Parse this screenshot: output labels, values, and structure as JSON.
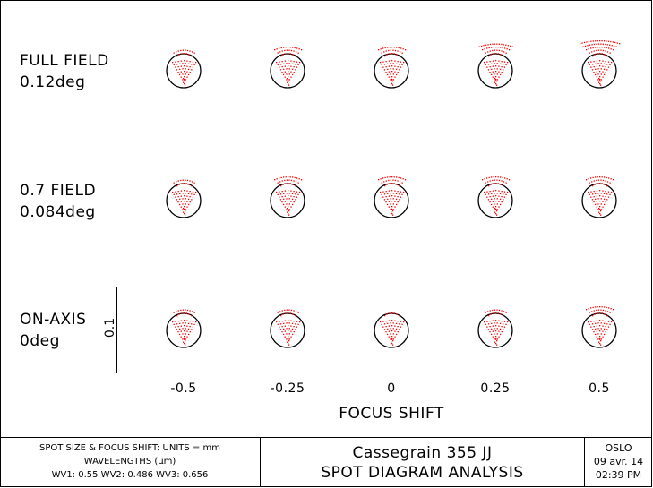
{
  "rows": [
    {
      "name": "FULL FIELD",
      "angle": "0.12deg"
    },
    {
      "name": "0.7 FIELD",
      "angle": "0.084deg"
    },
    {
      "name": "ON-AXIS",
      "angle": "0deg"
    }
  ],
  "focus_shifts": [
    "-0.5",
    "-0.25",
    "0",
    "0.25",
    "0.5"
  ],
  "axis_title": "FOCUS SHIFT",
  "scale_label": "0.1",
  "spot_color": "#ff0000",
  "footer": {
    "units_line": "SPOT SIZE & FOCUS SHIFT: UNITS = mm",
    "wavelengths_line": "WAVELENGTHS (μm)",
    "wv_line": "WV1: 0.55 WV2: 0.486 WV3: 0.656",
    "title": "Cassegrain 355 JJ",
    "subtitle": "SPOT DIAGRAM ANALYSIS",
    "program": "OSLO",
    "date": "09 avr. 14",
    "time": "02:39 PM"
  }
}
